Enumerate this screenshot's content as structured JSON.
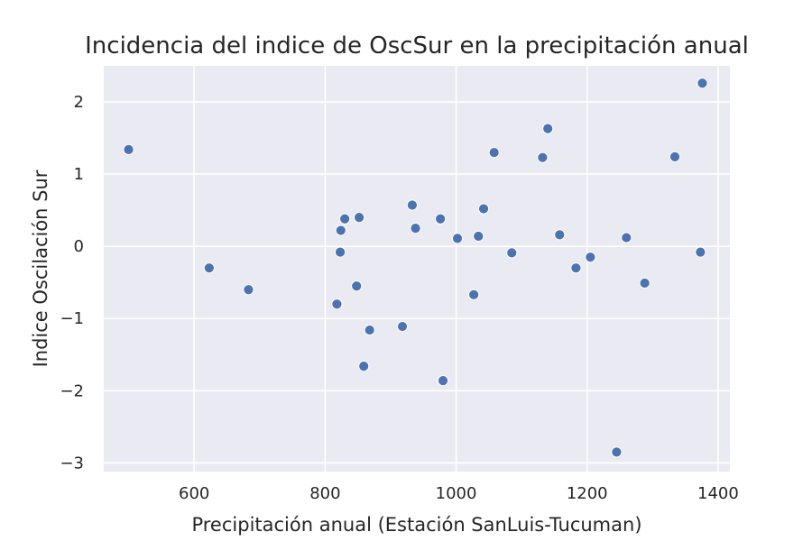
{
  "chart_data": {
    "type": "scatter",
    "title": "Incidencia del indice de OscSur en la precipitación anual",
    "xlabel": "Precipitación anual (Estación SanLuis-Tucuman)",
    "ylabel": "Indice Oscilación Sur",
    "xlim": [
      462,
      1418
    ],
    "ylim": [
      -3.12,
      2.5
    ],
    "xticks": [
      600,
      800,
      1000,
      1200,
      1400
    ],
    "xtick_labels": [
      "600",
      "800",
      "1000",
      "1200",
      "1400"
    ],
    "yticks": [
      -3,
      -2,
      -1,
      0,
      1,
      2
    ],
    "ytick_labels": [
      "−3",
      "−2",
      "−1",
      "0",
      "1",
      "2"
    ],
    "grid": true,
    "background": "#eaeaf2",
    "point_color": "#4c72b0",
    "points": [
      {
        "x": 500,
        "y": 1.34
      },
      {
        "x": 623,
        "y": -0.3
      },
      {
        "x": 683,
        "y": -0.6
      },
      {
        "x": 818,
        "y": -0.8
      },
      {
        "x": 823,
        "y": -0.08
      },
      {
        "x": 824,
        "y": 0.22
      },
      {
        "x": 830,
        "y": 0.38
      },
      {
        "x": 848,
        "y": -0.55
      },
      {
        "x": 852,
        "y": 0.4
      },
      {
        "x": 859,
        "y": -1.66
      },
      {
        "x": 868,
        "y": -1.16
      },
      {
        "x": 918,
        "y": -1.11
      },
      {
        "x": 933,
        "y": 0.57
      },
      {
        "x": 938,
        "y": 0.25
      },
      {
        "x": 976,
        "y": 0.38
      },
      {
        "x": 980,
        "y": -1.86
      },
      {
        "x": 1002,
        "y": 0.11
      },
      {
        "x": 1027,
        "y": -0.67
      },
      {
        "x": 1034,
        "y": 0.14
      },
      {
        "x": 1042,
        "y": 0.52
      },
      {
        "x": 1058,
        "y": 1.3
      },
      {
        "x": 1085,
        "y": -0.09
      },
      {
        "x": 1132,
        "y": 1.23
      },
      {
        "x": 1140,
        "y": 1.63
      },
      {
        "x": 1158,
        "y": 0.16
      },
      {
        "x": 1183,
        "y": -0.3
      },
      {
        "x": 1205,
        "y": -0.15
      },
      {
        "x": 1245,
        "y": -2.85
      },
      {
        "x": 1260,
        "y": 0.12
      },
      {
        "x": 1288,
        "y": -0.51
      },
      {
        "x": 1334,
        "y": 1.24
      },
      {
        "x": 1373,
        "y": -0.08
      },
      {
        "x": 1376,
        "y": 2.26
      }
    ]
  }
}
